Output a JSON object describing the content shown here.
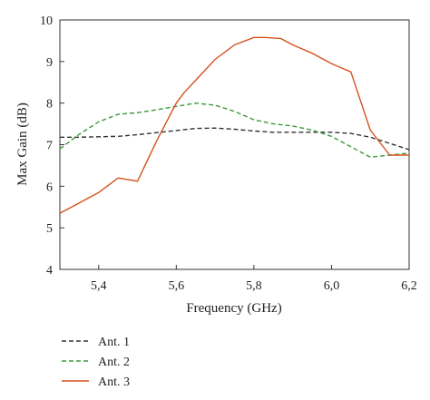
{
  "chart_data": {
    "type": "line",
    "title": "",
    "xlabel": "Frequency (GHz)",
    "ylabel": "Max Gain (dB)",
    "xlim": [
      5.3,
      6.2
    ],
    "ylim": [
      4,
      10
    ],
    "xticks": [
      5.4,
      5.6,
      5.8,
      6.0,
      6.2
    ],
    "xtick_labels": [
      "5,4",
      "5,6",
      "5,8",
      "6,0",
      "6,2"
    ],
    "yticks": [
      4,
      5,
      6,
      7,
      8,
      9,
      10
    ],
    "ytick_labels": [
      "4",
      "5",
      "6",
      "7",
      "8",
      "9",
      "10"
    ],
    "grid": false,
    "legend_position": "bottom-left",
    "series": [
      {
        "name": "Ant. 1",
        "color": "#333333",
        "dash": "dashed",
        "x": [
          5.3,
          5.35,
          5.4,
          5.45,
          5.5,
          5.55,
          5.6,
          5.65,
          5.7,
          5.75,
          5.8,
          5.85,
          5.9,
          5.95,
          6.0,
          6.05,
          6.1,
          6.15,
          6.2
        ],
        "y": [
          7.18,
          7.18,
          7.19,
          7.2,
          7.24,
          7.29,
          7.34,
          7.39,
          7.4,
          7.37,
          7.33,
          7.3,
          7.3,
          7.3,
          7.3,
          7.27,
          7.18,
          7.03,
          6.88
        ]
      },
      {
        "name": "Ant. 2",
        "color": "#3a9a3a",
        "dash": "dashed",
        "x": [
          5.3,
          5.35,
          5.4,
          5.45,
          5.5,
          5.55,
          5.6,
          5.65,
          5.7,
          5.75,
          5.8,
          5.85,
          5.9,
          5.95,
          6.0,
          6.05,
          6.1,
          6.15,
          6.2
        ],
        "y": [
          6.9,
          7.25,
          7.55,
          7.73,
          7.77,
          7.84,
          7.92,
          8.0,
          7.95,
          7.8,
          7.6,
          7.5,
          7.45,
          7.35,
          7.2,
          6.95,
          6.7,
          6.75,
          6.8
        ]
      },
      {
        "name": "Ant. 3",
        "color": "#d4521f",
        "dash": "solid",
        "x": [
          5.3,
          5.35,
          5.4,
          5.45,
          5.5,
          5.55,
          5.6,
          5.62,
          5.65,
          5.7,
          5.75,
          5.8,
          5.83,
          5.87,
          5.9,
          5.95,
          6.0,
          6.05,
          6.1,
          6.15,
          6.2
        ],
        "y": [
          5.35,
          5.6,
          5.85,
          6.2,
          6.12,
          7.1,
          8.0,
          8.25,
          8.55,
          9.05,
          9.4,
          9.58,
          9.58,
          9.55,
          9.4,
          9.2,
          8.95,
          8.75,
          7.35,
          6.75,
          6.75
        ]
      }
    ]
  }
}
